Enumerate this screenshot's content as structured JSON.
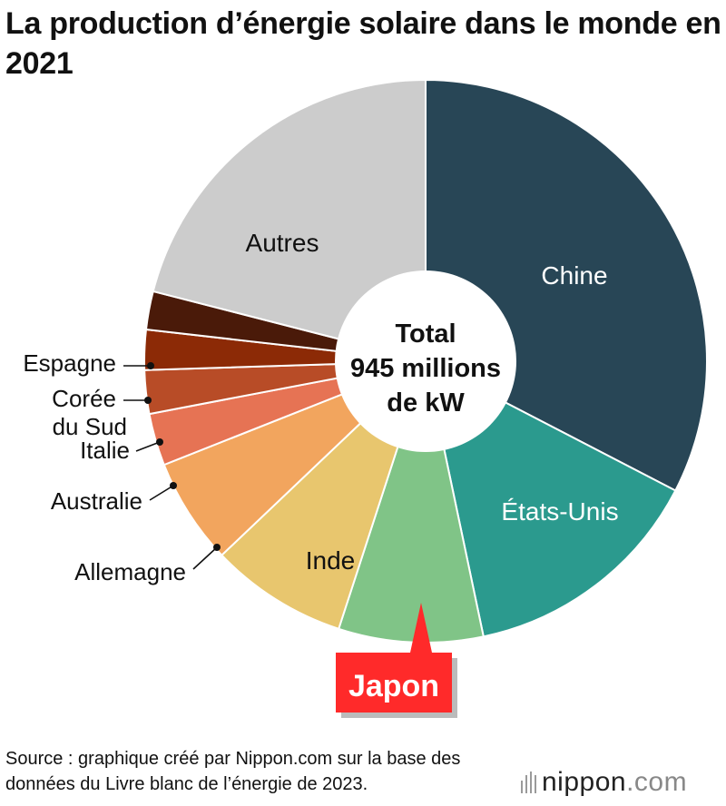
{
  "title": "La production d’énergie solaire dans le monde en 2021",
  "center_label": {
    "line1": "Total",
    "line2": "945 millions",
    "line3": "de kW"
  },
  "source": "Source : graphique créé par Nippon.com sur la base des données du Livre blanc de l’énergie de 2023.",
  "brand": {
    "name": "nippon",
    "tld": ".com"
  },
  "highlight": {
    "label": "Japon",
    "color": "#ff2a2a"
  },
  "chart_data": {
    "type": "pie",
    "style": "donut",
    "total": {
      "value": 945,
      "unit": "millions de kW"
    },
    "slices": [
      {
        "label": "Chine",
        "share": 0.326,
        "color": "#284656",
        "label_color": "#ffffff",
        "label_mode": "inside"
      },
      {
        "label": "États-Unis",
        "share": 0.141,
        "color": "#2b9a8e",
        "label_color": "#ffffff",
        "label_mode": "inside"
      },
      {
        "label": "Japon",
        "share": 0.083,
        "color": "#80c487",
        "label_color": "#ffffff",
        "label_mode": "callout"
      },
      {
        "label": "Inde",
        "share": 0.079,
        "color": "#e8c66e",
        "label_color": "#111111",
        "label_mode": "inside"
      },
      {
        "label": "Allemagne",
        "share": 0.061,
        "color": "#f2a55e",
        "label_color": "#111111",
        "label_mode": "outside"
      },
      {
        "label": "Australie",
        "share": 0.03,
        "color": "#e67354",
        "label_color": "#111111",
        "label_mode": "outside"
      },
      {
        "label": "Italie",
        "share": 0.025,
        "color": "#b84c27",
        "label_color": "#111111",
        "label_mode": "outside"
      },
      {
        "label": "Corée du Sud",
        "label_lines": [
          "Corée",
          "du Sud"
        ],
        "share": 0.023,
        "color": "#8c2a06",
        "label_color": "#111111",
        "label_mode": "outside"
      },
      {
        "label": "Espagne",
        "share": 0.022,
        "color": "#4a1a09",
        "label_color": "#111111",
        "label_mode": "outside"
      },
      {
        "label": "Autres",
        "share": 0.21,
        "color": "#cccccc",
        "label_color": "#111111",
        "label_mode": "inside"
      }
    ]
  }
}
